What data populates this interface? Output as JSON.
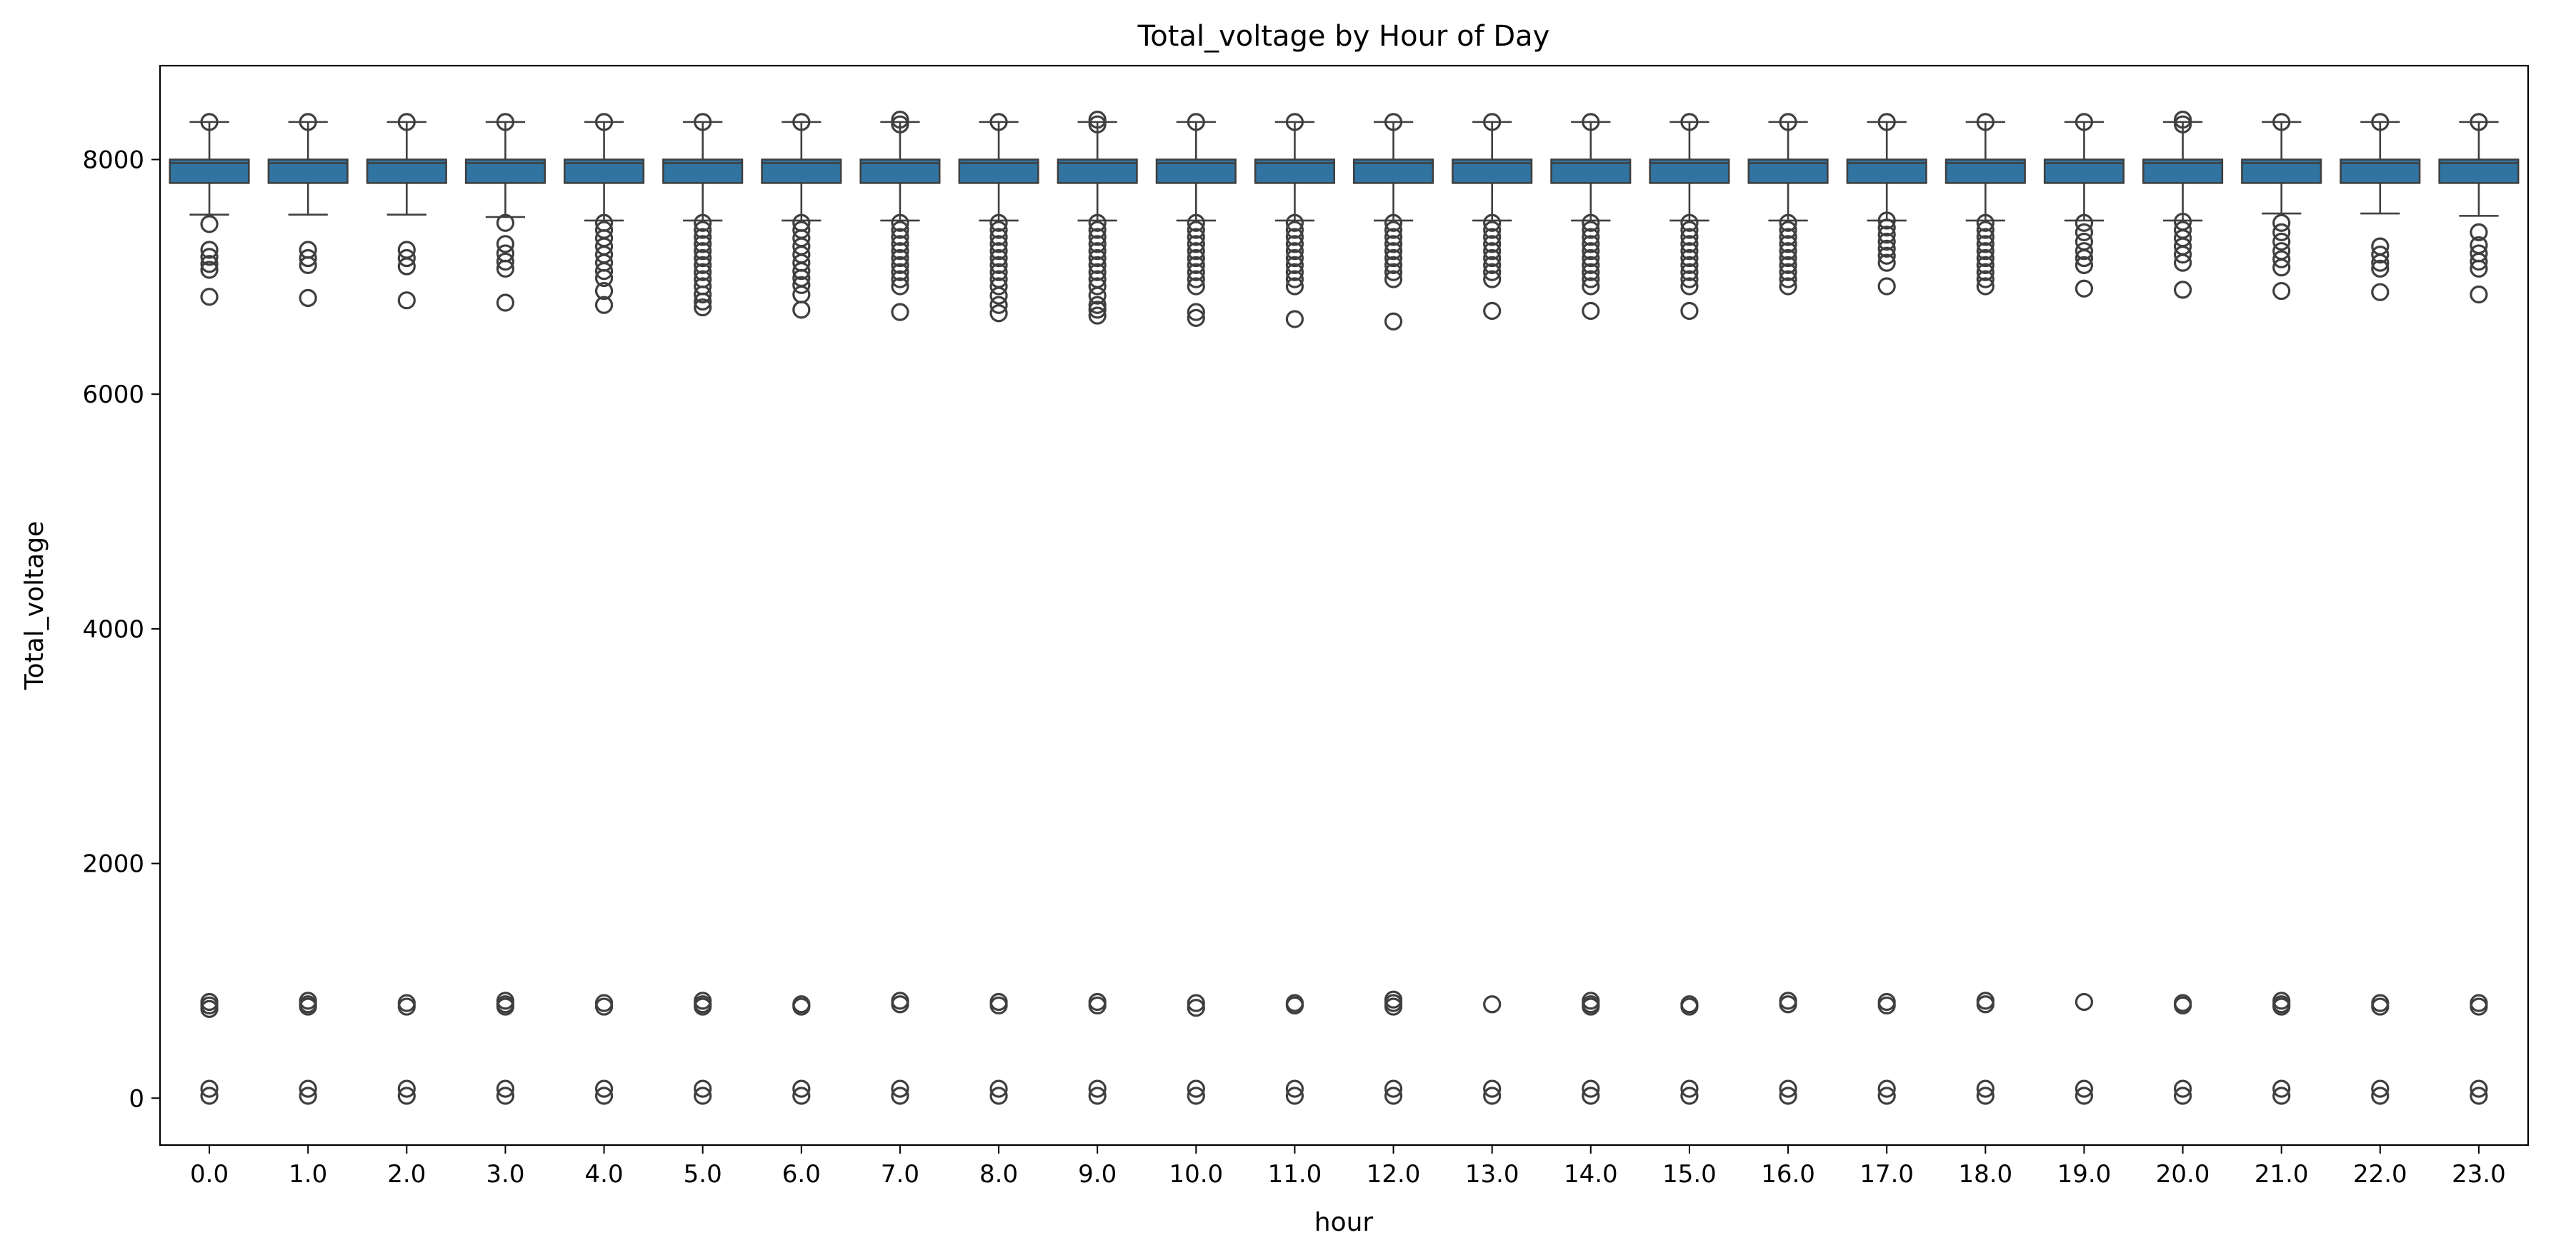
{
  "chart_data": {
    "type": "box",
    "title": "Total_voltage by Hour of Day",
    "xlabel": "hour",
    "ylabel": "Total_voltage",
    "categories": [
      "0.0",
      "1.0",
      "2.0",
      "3.0",
      "4.0",
      "5.0",
      "6.0",
      "7.0",
      "8.0",
      "9.0",
      "10.0",
      "11.0",
      "12.0",
      "13.0",
      "14.0",
      "15.0",
      "16.0",
      "17.0",
      "18.0",
      "19.0",
      "20.0",
      "21.0",
      "22.0",
      "23.0"
    ],
    "ylim": [
      -400,
      8800
    ],
    "yticks": [
      0,
      2000,
      4000,
      6000,
      8000
    ],
    "grid": false,
    "legend": "none",
    "colors": {
      "box_fill": "#3274a1",
      "edge": "#3f3f3f"
    },
    "series": [
      {
        "hour": "0.0",
        "whisker_low": 7530,
        "q1": 7800,
        "median": 7970,
        "q3": 8000,
        "whisker_high": 8320,
        "outliers": [
          8320,
          7450,
          7230,
          7170,
          7110,
          7060,
          6830,
          820,
          790,
          760,
          80,
          20
        ]
      },
      {
        "hour": "1.0",
        "whisker_low": 7530,
        "q1": 7800,
        "median": 7970,
        "q3": 8000,
        "whisker_high": 8320,
        "outliers": [
          8320,
          7230,
          7160,
          7100,
          6820,
          830,
          800,
          780,
          80,
          20
        ]
      },
      {
        "hour": "2.0",
        "whisker_low": 7530,
        "q1": 7800,
        "median": 7970,
        "q3": 8000,
        "whisker_high": 8320,
        "outliers": [
          8320,
          7230,
          7160,
          7090,
          6800,
          810,
          780,
          80,
          20
        ]
      },
      {
        "hour": "3.0",
        "whisker_low": 7510,
        "q1": 7800,
        "median": 7970,
        "q3": 8000,
        "whisker_high": 8320,
        "outliers": [
          8320,
          7460,
          7280,
          7200,
          7130,
          7070,
          6780,
          830,
          800,
          780,
          80,
          20
        ]
      },
      {
        "hour": "4.0",
        "whisker_low": 7480,
        "q1": 7800,
        "median": 7970,
        "q3": 8000,
        "whisker_high": 8320,
        "outliers": [
          8320,
          7460,
          7400,
          7330,
          7260,
          7190,
          7120,
          7050,
          6990,
          6880,
          6760,
          810,
          780,
          80,
          20
        ]
      },
      {
        "hour": "5.0",
        "whisker_low": 7480,
        "q1": 7800,
        "median": 7970,
        "q3": 8000,
        "whisker_high": 8320,
        "outliers": [
          8320,
          7460,
          7400,
          7340,
          7280,
          7220,
          7160,
          7100,
          7040,
          6980,
          6920,
          6850,
          6790,
          6740,
          830,
          800,
          780,
          80,
          20
        ]
      },
      {
        "hour": "6.0",
        "whisker_low": 7480,
        "q1": 7800,
        "median": 7970,
        "q3": 8000,
        "whisker_high": 8320,
        "outliers": [
          8320,
          7460,
          7400,
          7330,
          7260,
          7190,
          7120,
          7050,
          6990,
          6930,
          6850,
          6720,
          800,
          780,
          80,
          20
        ]
      },
      {
        "hour": "7.0",
        "whisker_low": 7480,
        "q1": 7800,
        "median": 7970,
        "q3": 8000,
        "whisker_high": 8320,
        "outliers": [
          8340,
          8300,
          7460,
          7400,
          7340,
          7280,
          7220,
          7160,
          7100,
          7040,
          6980,
          6920,
          6700,
          830,
          800,
          80,
          20
        ]
      },
      {
        "hour": "8.0",
        "whisker_low": 7480,
        "q1": 7800,
        "median": 7970,
        "q3": 8000,
        "whisker_high": 8320,
        "outliers": [
          8320,
          7460,
          7400,
          7340,
          7280,
          7220,
          7160,
          7100,
          7040,
          6980,
          6920,
          6840,
          6760,
          6690,
          820,
          790,
          80,
          20
        ]
      },
      {
        "hour": "9.0",
        "whisker_low": 7480,
        "q1": 7800,
        "median": 7970,
        "q3": 8000,
        "whisker_high": 8320,
        "outliers": [
          8340,
          8300,
          7460,
          7400,
          7340,
          7280,
          7220,
          7160,
          7100,
          7040,
          6980,
          6920,
          6840,
          6760,
          6720,
          6670,
          820,
          790,
          80,
          20
        ]
      },
      {
        "hour": "10.0",
        "whisker_low": 7480,
        "q1": 7800,
        "median": 7970,
        "q3": 8000,
        "whisker_high": 8320,
        "outliers": [
          8320,
          7460,
          7400,
          7340,
          7280,
          7220,
          7160,
          7100,
          7040,
          6980,
          6920,
          6700,
          6650,
          810,
          770,
          80,
          20
        ]
      },
      {
        "hour": "11.0",
        "whisker_low": 7480,
        "q1": 7800,
        "median": 7970,
        "q3": 8000,
        "whisker_high": 8320,
        "outliers": [
          8320,
          7460,
          7400,
          7340,
          7280,
          7220,
          7160,
          7100,
          7040,
          6980,
          6920,
          6640,
          810,
          790,
          80,
          20
        ]
      },
      {
        "hour": "12.0",
        "whisker_low": 7480,
        "q1": 7800,
        "median": 7970,
        "q3": 8000,
        "whisker_high": 8320,
        "outliers": [
          8320,
          7460,
          7400,
          7340,
          7280,
          7220,
          7160,
          7100,
          7040,
          6980,
          6620,
          840,
          810,
          780,
          80,
          20
        ]
      },
      {
        "hour": "13.0",
        "whisker_low": 7480,
        "q1": 7800,
        "median": 7970,
        "q3": 8000,
        "whisker_high": 8320,
        "outliers": [
          8320,
          7460,
          7400,
          7340,
          7280,
          7220,
          7160,
          7100,
          7040,
          6980,
          6710,
          800,
          80,
          20
        ]
      },
      {
        "hour": "14.0",
        "whisker_low": 7480,
        "q1": 7800,
        "median": 7970,
        "q3": 8000,
        "whisker_high": 8320,
        "outliers": [
          8320,
          7460,
          7400,
          7340,
          7280,
          7220,
          7160,
          7100,
          7040,
          6980,
          6920,
          6710,
          830,
          800,
          780,
          80,
          20
        ]
      },
      {
        "hour": "15.0",
        "whisker_low": 7480,
        "q1": 7800,
        "median": 7970,
        "q3": 8000,
        "whisker_high": 8320,
        "outliers": [
          8320,
          7460,
          7400,
          7340,
          7280,
          7220,
          7160,
          7100,
          7040,
          6980,
          6920,
          6710,
          800,
          780,
          80,
          20
        ]
      },
      {
        "hour": "16.0",
        "whisker_low": 7480,
        "q1": 7800,
        "median": 7970,
        "q3": 8000,
        "whisker_high": 8320,
        "outliers": [
          8320,
          7460,
          7400,
          7340,
          7280,
          7220,
          7160,
          7100,
          7040,
          6980,
          6920,
          830,
          800,
          80,
          20
        ]
      },
      {
        "hour": "17.0",
        "whisker_low": 7480,
        "q1": 7800,
        "median": 7970,
        "q3": 8000,
        "whisker_high": 8320,
        "outliers": [
          8320,
          7480,
          7420,
          7360,
          7300,
          7240,
          7180,
          7120,
          6920,
          820,
          790,
          80,
          20
        ]
      },
      {
        "hour": "18.0",
        "whisker_low": 7480,
        "q1": 7800,
        "median": 7970,
        "q3": 8000,
        "whisker_high": 8320,
        "outliers": [
          8320,
          7460,
          7400,
          7340,
          7280,
          7220,
          7160,
          7100,
          7040,
          6980,
          6920,
          830,
          800,
          80,
          20
        ]
      },
      {
        "hour": "19.0",
        "whisker_low": 7480,
        "q1": 7800,
        "median": 7970,
        "q3": 8000,
        "whisker_high": 8320,
        "outliers": [
          8320,
          7460,
          7380,
          7300,
          7220,
          7160,
          7100,
          6900,
          820,
          80,
          20
        ]
      },
      {
        "hour": "20.0",
        "whisker_low": 7480,
        "q1": 7800,
        "median": 7970,
        "q3": 8000,
        "whisker_high": 8320,
        "outliers": [
          8340,
          8300,
          7470,
          7400,
          7330,
          7260,
          7190,
          7120,
          6890,
          810,
          790,
          80,
          20
        ]
      },
      {
        "hour": "21.0",
        "whisker_low": 7540,
        "q1": 7800,
        "median": 7970,
        "q3": 8000,
        "whisker_high": 8320,
        "outliers": [
          8320,
          7460,
          7380,
          7300,
          7220,
          7150,
          7080,
          6880,
          830,
          800,
          780,
          80,
          20
        ]
      },
      {
        "hour": "22.0",
        "whisker_low": 7540,
        "q1": 7800,
        "median": 7970,
        "q3": 8000,
        "whisker_high": 8320,
        "outliers": [
          8320,
          7260,
          7190,
          7120,
          7070,
          6870,
          810,
          780,
          80,
          20
        ]
      },
      {
        "hour": "23.0",
        "whisker_low": 7520,
        "q1": 7800,
        "median": 7970,
        "q3": 8000,
        "whisker_high": 8320,
        "outliers": [
          8320,
          7380,
          7270,
          7200,
          7130,
          7070,
          6850,
          810,
          780,
          80,
          20
        ]
      }
    ]
  }
}
